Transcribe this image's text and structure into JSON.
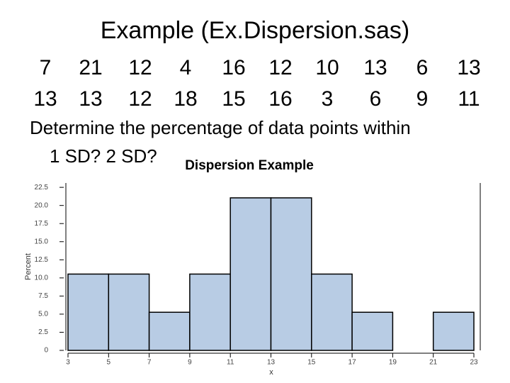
{
  "header": {
    "title": "Example (Ex.Dispersion.sas)"
  },
  "data_rows": [
    [
      7,
      21,
      12,
      4,
      16,
      12,
      10,
      13,
      6,
      13
    ],
    [
      13,
      13,
      12,
      18,
      15,
      16,
      3,
      6,
      9,
      11
    ]
  ],
  "question": [
    "Determine the percentage of data points within",
    "1 SD? 2 SD?"
  ],
  "chart_data": {
    "type": "histogram",
    "title": "Dispersion Example",
    "x_label": "x",
    "y_label": "Percent",
    "bins": [
      3,
      5,
      7,
      9,
      11,
      13,
      15,
      17,
      19,
      21,
      23
    ],
    "values": [
      10.53,
      10.53,
      5.26,
      10.53,
      21.05,
      21.05,
      10.53,
      5.26,
      0,
      5.26
    ],
    "color": "#b8cce4",
    "xlim": [
      3,
      23
    ],
    "xticks": [
      3,
      5,
      7,
      9,
      11,
      13,
      15,
      17,
      19,
      21,
      23
    ],
    "ylim": [
      0,
      23.1
    ],
    "yticks": [
      0,
      2.5,
      {
        "value": 5,
        "label": "5.0"
      },
      7.5,
      {
        "value": 10,
        "label": "10.0"
      },
      12.5,
      {
        "value": 15,
        "label": "15.0"
      },
      17.5,
      {
        "value": 20,
        "label": "20.0"
      },
      22.5
    ]
  }
}
